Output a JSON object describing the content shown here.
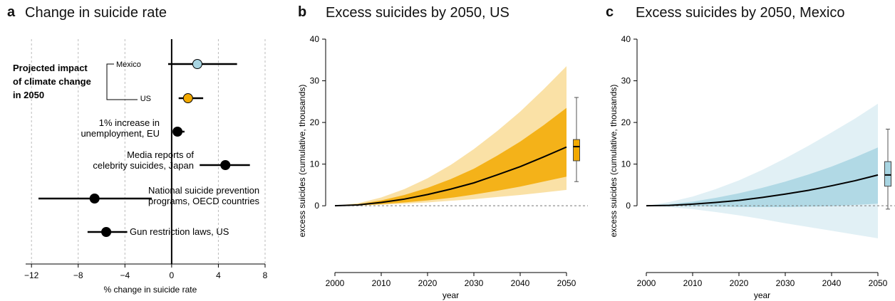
{
  "panels": {
    "a": {
      "letter": "a",
      "title": "Change in suicide rate"
    },
    "b": {
      "letter": "b",
      "title": "Excess suicides by 2050, US"
    },
    "c": {
      "letter": "c",
      "title": "Excess suicides by 2050, Mexico"
    }
  },
  "colors": {
    "us": "#f2a900",
    "mexico": "#a8d5e2",
    "dark": "#000000",
    "grid": "#bbbbbb"
  },
  "chart_data": [
    {
      "type": "forest",
      "panel": "a",
      "xlabel": "% change in suicide rate",
      "xlim": [
        -12.5,
        8
      ],
      "xticks": [
        -12,
        -8,
        -4,
        0,
        4,
        8
      ],
      "xtick_labels": [
        "−12",
        "−8",
        "−4",
        "0",
        "4",
        "8"
      ],
      "group_label_lines": [
        "Projected impact",
        "of climate change",
        "in 2050"
      ],
      "rows": [
        {
          "label_lines": [
            "Mexico"
          ],
          "estimate": 2.2,
          "low": -0.3,
          "high": 5.6,
          "marker": "mexico"
        },
        {
          "label_lines": [
            "US"
          ],
          "estimate": 1.4,
          "low": 0.6,
          "high": 2.7,
          "marker": "us"
        },
        {
          "label_lines": [
            "1% increase in",
            "unemployment, EU"
          ],
          "estimate": 0.5,
          "low": 0.1,
          "high": 1.1,
          "marker": "dark"
        },
        {
          "label_lines": [
            "Media reports of",
            "celebrity suicides, Japan"
          ],
          "estimate": 4.6,
          "low": 2.4,
          "high": 6.7,
          "marker": "dark"
        },
        {
          "label_lines": [
            "National suicide prevention",
            "programs, OECD countries"
          ],
          "estimate": -6.6,
          "low": -11.4,
          "high": -1.7,
          "marker": "dark"
        },
        {
          "label_lines": [
            "Gun restriction laws, US"
          ],
          "estimate": -5.6,
          "low": -7.2,
          "high": -3.8,
          "marker": "dark"
        }
      ]
    },
    {
      "type": "area",
      "panel": "b",
      "xlabel": "year",
      "ylabel": "excess suicides (cumulative, thousands)",
      "xlim": [
        2000,
        2050
      ],
      "ylim": [
        -15,
        40
      ],
      "xticks": [
        2000,
        2010,
        2020,
        2030,
        2040,
        2050
      ],
      "yticks": [
        0,
        10,
        20,
        30,
        40
      ],
      "x": [
        2000,
        2005,
        2010,
        2015,
        2020,
        2025,
        2030,
        2035,
        2040,
        2045,
        2050
      ],
      "series": [
        {
          "median": [
            0,
            0.2,
            0.8,
            1.6,
            2.7,
            4.0,
            5.5,
            7.4,
            9.4,
            11.7,
            14.1
          ]
        }
      ],
      "band_inner": {
        "low": [
          0,
          0.1,
          0.4,
          0.8,
          1.3,
          1.9,
          2.7,
          3.6,
          4.6,
          5.8,
          7.0
        ],
        "high": [
          0,
          0.4,
          1.3,
          2.6,
          4.3,
          6.4,
          8.9,
          12.0,
          15.4,
          19.3,
          23.5
        ]
      },
      "band_outer": {
        "low": [
          0,
          0.05,
          0.25,
          0.5,
          0.8,
          1.2,
          1.6,
          2.1,
          2.6,
          3.2,
          3.8
        ],
        "high": [
          0,
          0.6,
          2.0,
          4.0,
          6.6,
          9.8,
          13.6,
          17.9,
          22.6,
          27.9,
          33.5
        ]
      },
      "boxplot": {
        "min": 5.8,
        "q1": 10.8,
        "median": 14.2,
        "q3": 15.9,
        "max": 26.0
      },
      "color": "us"
    },
    {
      "type": "area",
      "panel": "c",
      "xlabel": "year",
      "ylabel": "excess suicides (cumulative, thousands)",
      "xlim": [
        2000,
        2050
      ],
      "ylim": [
        -15,
        40
      ],
      "xticks": [
        2000,
        2010,
        2020,
        2030,
        2040,
        2050
      ],
      "yticks": [
        0,
        10,
        20,
        30,
        40
      ],
      "x": [
        2000,
        2005,
        2010,
        2015,
        2020,
        2025,
        2030,
        2035,
        2040,
        2045,
        2050
      ],
      "series": [
        {
          "median": [
            0,
            0.1,
            0.4,
            0.8,
            1.3,
            2.0,
            2.8,
            3.7,
            4.8,
            6.0,
            7.4
          ]
        }
      ],
      "band_inner": {
        "low": [
          0,
          -0.05,
          -0.1,
          -0.2,
          -0.3,
          -0.3,
          -0.3,
          -0.2,
          -0.1,
          0.2,
          0.5
        ],
        "high": [
          0,
          0.4,
          1.0,
          1.9,
          3.0,
          4.3,
          5.8,
          7.5,
          9.4,
          11.6,
          14.0
        ]
      },
      "band_outer": {
        "low": [
          0,
          -0.3,
          -0.8,
          -1.5,
          -2.3,
          -3.2,
          -4.2,
          -5.1,
          -6.0,
          -6.9,
          -7.8
        ],
        "high": [
          0,
          0.9,
          2.2,
          4.0,
          6.1,
          8.6,
          11.4,
          14.4,
          17.6,
          20.9,
          24.5
        ]
      },
      "boxplot": {
        "min": -0.8,
        "q1": 4.7,
        "median": 7.4,
        "q3": 10.6,
        "max": 18.4
      },
      "color": "mexico"
    }
  ]
}
